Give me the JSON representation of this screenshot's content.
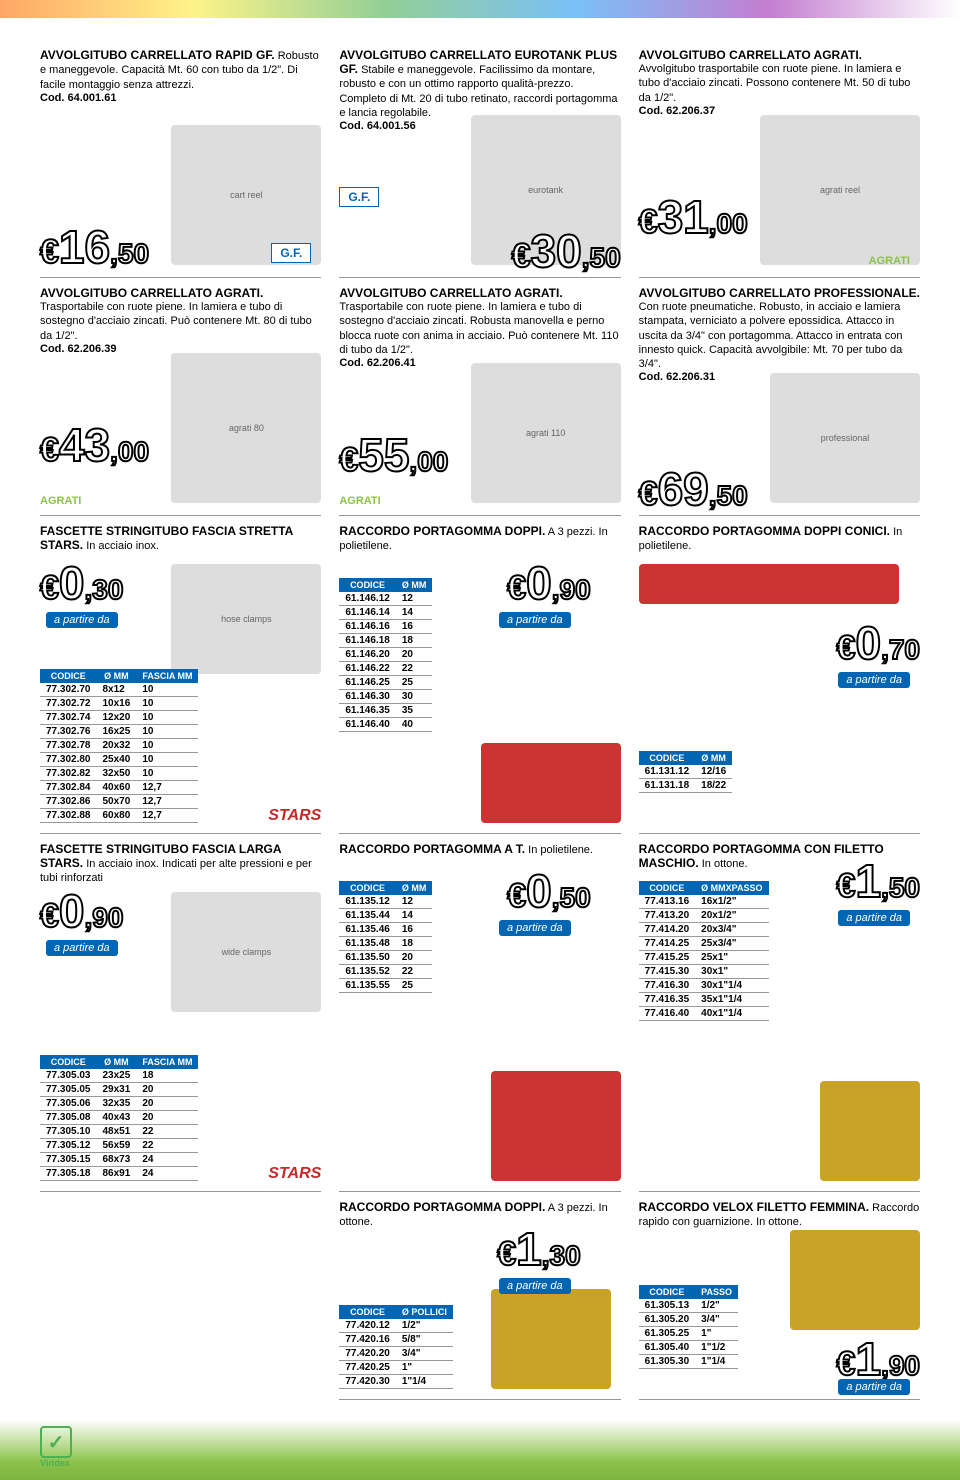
{
  "colors": {
    "blue": "#0066b3",
    "text": "#000",
    "grid": "#999"
  },
  "p": [
    {
      "t": "AVVOLGITUBO CARRELLATO RAPID GF.",
      "d": "Robusto e maneggevole. Capacità Mt. 60 con tubo da 1/2\". Di facile montaggio senza attrezzi.",
      "c": "Cod. 64.001.61",
      "eur": "€",
      "i": "16",
      "dc": ",50"
    },
    {
      "t": "AVVOLGITUBO CARRELLATO EUROTANK PLUS GF.",
      "d": "Stabile e maneggevole. Facilissimo da montare, robusto e con un ottimo rapporto qualità-prezzo. Completo di Mt. 20 di tubo retinato, raccordi portagomma e lancia regolabile.",
      "c": "Cod. 64.001.56",
      "eur": "€",
      "i": "30",
      "dc": ",50"
    },
    {
      "t": "AVVOLGITUBO CARRELLATO AGRATI.",
      "d": "Avvolgitubo trasportabile con ruote piene. In lamiera e tubo d'acciaio zincati. Possono contenere Mt. 50 di tubo da 1/2\".",
      "c": "Cod. 62.206.37",
      "eur": "€",
      "i": "31",
      "dc": ",00"
    },
    {
      "t": "AVVOLGITUBO CARRELLATO AGRATI.",
      "d": "Trasportabile con ruote piene. In lamiera e tubo di sostegno d'acciaio zincati. Può contenere Mt. 80 di tubo da 1/2\".",
      "c": "Cod. 62.206.39",
      "eur": "€",
      "i": "43",
      "dc": ",00"
    },
    {
      "t": "AVVOLGITUBO CARRELLATO AGRATI.",
      "d": "Trasportabile con ruote piene. In lamiera e tubo di sostegno d'acciaio zincati. Robusta manovella e perno blocca ruote con anima in acciaio. Può contenere Mt. 110 di tubo da 1/2\".",
      "c": "Cod. 62.206.41",
      "eur": "€",
      "i": "55",
      "dc": ",00"
    },
    {
      "t": "AVVOLGITUBO CARRELLATO PROFESSIONALE.",
      "d": "Con ruote pneumatiche. Robusto, in acciaio e lamiera stampata, verniciato a polvere epossidica. Attacco in uscita da 3/4\" con portagomma. Attacco in entrata con innesto quick. Capacità avvolgibile: Mt. 70 per tubo da 3/4\".",
      "c": "Cod. 62.206.31",
      "eur": "€",
      "i": "69",
      "dc": ",50"
    },
    {
      "t": "FASCETTE STRINGITUBO FASCIA STRETTA STARS.",
      "d": "In acciaio inox.",
      "eur": "€",
      "i": "0",
      "dc": ",30",
      "apd": "a partire da"
    },
    {
      "t": "RACCORDO PORTAGOMMA DOPPI.",
      "d": "A 3 pezzi. In polietilene.",
      "eur": "€",
      "i": "0",
      "dc": ",90",
      "apd": "a partire da"
    },
    {
      "t": "RACCORDO PORTAGOMMA DOPPI CONICI.",
      "d": "In polietilene.",
      "eur": "€",
      "i": "0",
      "dc": ",70",
      "apd": "a partire da"
    },
    {
      "t": "FASCETTE STRINGITUBO FASCIA LARGA STARS.",
      "d": "In acciaio inox. Indicati per alte pressioni e per tubi rinforzati",
      "eur": "€",
      "i": "0",
      "dc": ",90",
      "apd": "a partire da"
    },
    {
      "t": "RACCORDO PORTAGOMMA A T.",
      "d": "In polietilene.",
      "eur": "€",
      "i": "0",
      "dc": ",50",
      "apd": "a partire da"
    },
    {
      "t": "RACCORDO PORTAGOMMA CON FILETTO MASCHIO.",
      "d": "In ottone.",
      "eur": "€",
      "i": "1",
      "dc": ",50",
      "apd": "a partire da"
    },
    {
      "t": "RACCORDO PORTAGOMMA DOPPI.",
      "d": "A 3 pezzi. In ottone.",
      "eur": "€",
      "i": "1",
      "dc": ",30",
      "apd": "a partire da"
    },
    {
      "t": "RACCORDO VELOX FILETTO FEMMINA.",
      "d": "Raccordo rapido con guarnizione. In ottone.",
      "eur": "€",
      "i": "1",
      "dc": ",90",
      "apd": "a partire da"
    }
  ],
  "tables": {
    "fascette_stretta": {
      "h": [
        "CODICE",
        "Ø MM",
        "FASCIA MM"
      ],
      "r": [
        [
          "77.302.70",
          "8x12",
          "10"
        ],
        [
          "77.302.72",
          "10x16",
          "10"
        ],
        [
          "77.302.74",
          "12x20",
          "10"
        ],
        [
          "77.302.76",
          "16x25",
          "10"
        ],
        [
          "77.302.78",
          "20x32",
          "10"
        ],
        [
          "77.302.80",
          "25x40",
          "10"
        ],
        [
          "77.302.82",
          "32x50",
          "10"
        ],
        [
          "77.302.84",
          "40x60",
          "12,7"
        ],
        [
          "77.302.86",
          "50x70",
          "12,7"
        ],
        [
          "77.302.88",
          "60x80",
          "12,7"
        ]
      ]
    },
    "fascette_larga": {
      "h": [
        "CODICE",
        "Ø MM",
        "FASCIA MM"
      ],
      "r": [
        [
          "77.305.03",
          "23x25",
          "18"
        ],
        [
          "77.305.05",
          "29x31",
          "20"
        ],
        [
          "77.305.06",
          "32x35",
          "20"
        ],
        [
          "77.305.08",
          "40x43",
          "20"
        ],
        [
          "77.305.10",
          "48x51",
          "22"
        ],
        [
          "77.305.12",
          "56x59",
          "22"
        ],
        [
          "77.305.15",
          "68x73",
          "24"
        ],
        [
          "77.305.18",
          "86x91",
          "24"
        ]
      ]
    },
    "doppi_pe": {
      "h": [
        "CODICE",
        "Ø MM"
      ],
      "r": [
        [
          "61.146.12",
          "12"
        ],
        [
          "61.146.14",
          "14"
        ],
        [
          "61.146.16",
          "16"
        ],
        [
          "61.146.18",
          "18"
        ],
        [
          "61.146.20",
          "20"
        ],
        [
          "61.146.22",
          "22"
        ],
        [
          "61.146.25",
          "25"
        ],
        [
          "61.146.30",
          "30"
        ],
        [
          "61.146.35",
          "35"
        ],
        [
          "61.146.40",
          "40"
        ]
      ]
    },
    "t_pe": {
      "h": [
        "CODICE",
        "Ø MM"
      ],
      "r": [
        [
          "61.135.12",
          "12"
        ],
        [
          "61.135.44",
          "14"
        ],
        [
          "61.135.46",
          "16"
        ],
        [
          "61.135.48",
          "18"
        ],
        [
          "61.135.50",
          "20"
        ],
        [
          "61.135.52",
          "22"
        ],
        [
          "61.135.55",
          "25"
        ]
      ]
    },
    "doppi_ot": {
      "h": [
        "CODICE",
        "Ø POLLICI"
      ],
      "r": [
        [
          "77.420.12",
          "1/2\""
        ],
        [
          "77.420.16",
          "5/8\""
        ],
        [
          "77.420.20",
          "3/4\""
        ],
        [
          "77.420.25",
          "1\""
        ],
        [
          "77.420.30",
          "1\"1/4"
        ]
      ]
    },
    "conici": {
      "h": [
        "CODICE",
        "Ø MM"
      ],
      "r": [
        [
          "61.131.12",
          "12/16"
        ],
        [
          "61.131.18",
          "18/22"
        ]
      ]
    },
    "maschio": {
      "h": [
        "CODICE",
        "Ø MMxPASSO"
      ],
      "r": [
        [
          "77.413.16",
          "16x1/2\""
        ],
        [
          "77.413.20",
          "20x1/2\""
        ],
        [
          "77.414.20",
          "20x3/4\""
        ],
        [
          "77.414.25",
          "25x3/4\""
        ],
        [
          "77.415.25",
          "25x1\""
        ],
        [
          "77.415.30",
          "30x1\""
        ],
        [
          "77.416.30",
          "30x1\"1/4"
        ],
        [
          "77.416.35",
          "35x1\"1/4"
        ],
        [
          "77.416.40",
          "40x1\"1/4"
        ]
      ]
    },
    "velox": {
      "h": [
        "CODICE",
        "PASSO"
      ],
      "r": [
        [
          "61.305.13",
          "1/2\""
        ],
        [
          "61.305.20",
          "3/4\""
        ],
        [
          "61.305.25",
          "1\""
        ],
        [
          "61.305.40",
          "1\"1/2"
        ],
        [
          "61.305.30",
          "1\"1/4"
        ]
      ]
    }
  },
  "brands": {
    "gf": "G.F.",
    "agrati": "AGRATI",
    "stars": "STARS",
    "viridex": "Viridex"
  }
}
